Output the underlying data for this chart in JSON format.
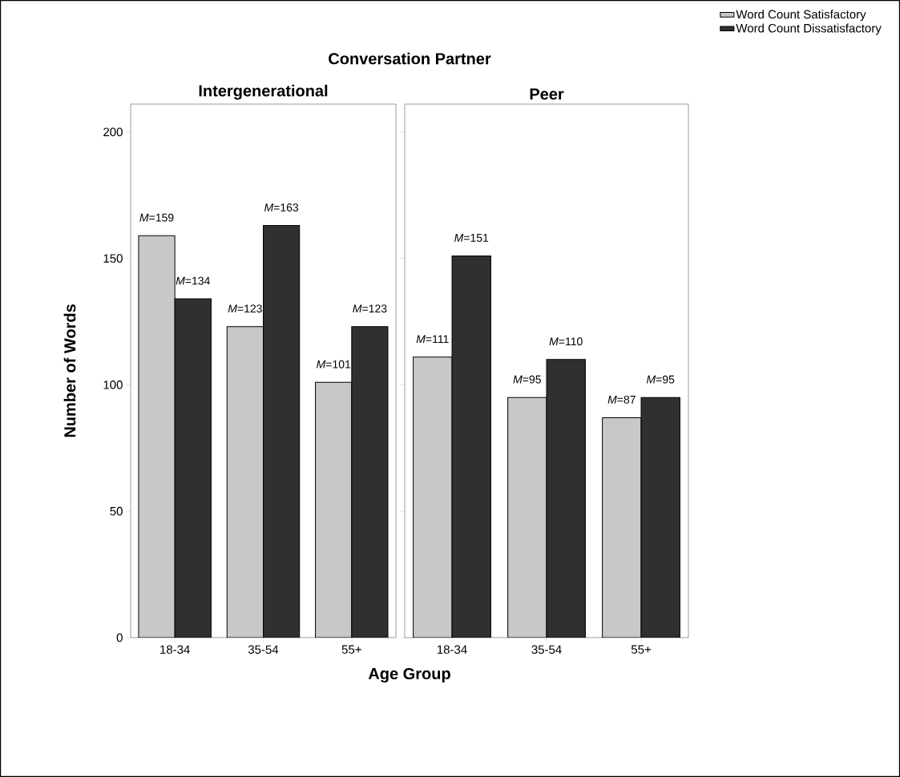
{
  "chart_data": [
    {
      "type": "bar",
      "title": "Intergenerational",
      "ylabel": "Number of Words",
      "xlabel": "Age Group",
      "annotations": [
        "Conversation Partner"
      ],
      "categories": [
        "18-34",
        "35-54",
        "55+"
      ],
      "ylim": [
        0,
        211
      ],
      "yticks": [
        0,
        50,
        100,
        150,
        200
      ],
      "series": [
        {
          "color": "#c8c8c8",
          "values": [
            159,
            123,
            101
          ],
          "value_labels": [
            "*M*=159",
            "*M*=123",
            "*M*=101"
          ]
        },
        {
          "color": "#303030",
          "values": [
            134,
            163,
            123
          ],
          "value_labels": [
            "*M*=134",
            "*M*=163",
            "*M*=123"
          ]
        }
      ]
    },
    {
      "type": "bar",
      "title": "Peer",
      "categories": [
        "18-34",
        "35-54",
        "55+"
      ],
      "ylim": [
        0,
        211
      ],
      "yticks": [
        0,
        50,
        100,
        150,
        200
      ],
      "tick_labels": "x",
      "legend": "top right",
      "series": [
        {
          "name": "Word Count Satisfactory",
          "color": "#c8c8c8",
          "values": [
            111,
            95,
            87
          ],
          "value_labels": [
            "*M*=111",
            "*M*=95",
            "*M*=87"
          ]
        },
        {
          "name": "Word Count Dissatisfactory",
          "color": "#303030",
          "values": [
            151,
            110,
            95
          ],
          "value_labels": [
            "*M*=151",
            "*M*=110",
            "*M*=95"
          ]
        }
      ]
    }
  ]
}
